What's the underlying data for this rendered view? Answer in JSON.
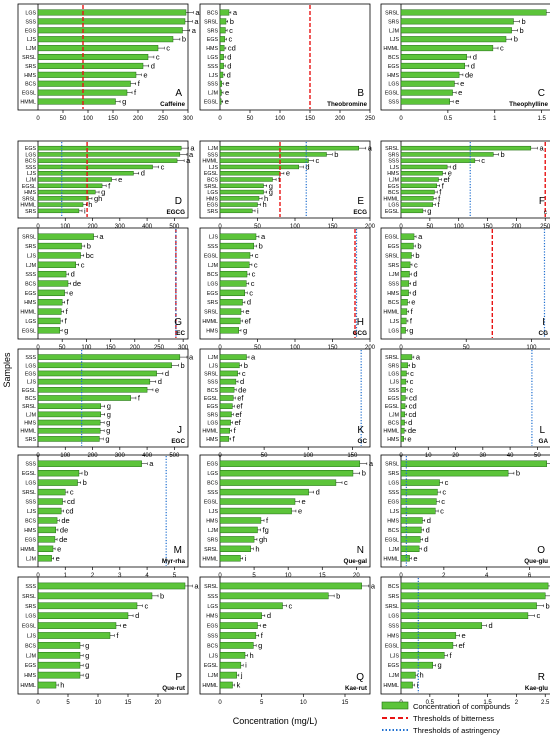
{
  "figure": {
    "ylabel": "Samples",
    "xlabel": "Concentration (mg/L)",
    "legend": [
      {
        "label": "Concentration of compounds",
        "kind": "bar",
        "color": "#5cc43a"
      },
      {
        "label": "Thresholds of bitterness",
        "kind": "dash",
        "color": "#e81414"
      },
      {
        "label": "Thresholds of astringency",
        "kind": "dot",
        "color": "#1e6fd0"
      }
    ]
  },
  "chart_data": [
    {
      "type": "bar",
      "panel": "A",
      "compound": "Caffeine",
      "xlim": [
        0,
        300
      ],
      "ticks": [
        50,
        100,
        150,
        200,
        250,
        300
      ],
      "bitterness": 90,
      "categories": [
        "LGS",
        "SSS",
        "EGS",
        "LJS",
        "LJM",
        "SRSL",
        "SRS",
        "HMS",
        "BCS",
        "EGSL",
        "HMML"
      ],
      "values": [
        296,
        294,
        289,
        270,
        240,
        220,
        210,
        196,
        185,
        178,
        155
      ],
      "labels": [
        "a",
        "a",
        "a",
        "b",
        "c",
        "c",
        "d",
        "e",
        "f",
        "f",
        "g"
      ]
    },
    {
      "type": "bar",
      "panel": "B",
      "compound": "Theobromine",
      "xlim": [
        0,
        250
      ],
      "ticks": [
        50,
        100,
        150,
        200,
        250
      ],
      "bitterness": 150,
      "categories": [
        "BCS",
        "SRSL",
        "SRS",
        "EGS",
        "HMS",
        "LGS",
        "SSS",
        "LJS",
        "SSS",
        "LJM",
        "EGSL"
      ],
      "values": [
        15,
        10,
        9,
        8,
        7,
        6,
        6,
        5,
        3,
        2.5,
        2
      ],
      "labels": [
        "a",
        "b",
        "c",
        "c",
        "cd",
        "d",
        "d",
        "d",
        "e",
        "e",
        "e"
      ]
    },
    {
      "type": "bar",
      "panel": "C",
      "compound": "Theophylline",
      "xlim": [
        0,
        1.6
      ],
      "ticks": [
        0.5,
        1,
        1.5
      ],
      "categories": [
        "SRSL",
        "SRS",
        "LJM",
        "LJS",
        "HMML",
        "BCS",
        "EGS",
        "HMS",
        "LGS",
        "EGSL",
        "SSS"
      ],
      "values": [
        1.55,
        1.2,
        1.18,
        1.12,
        0.98,
        0.7,
        0.68,
        0.62,
        0.57,
        0.55,
        0.52
      ],
      "labels": [
        "a",
        "b",
        "b",
        "b",
        "c",
        "d",
        "d",
        "de",
        "e",
        "e",
        "e"
      ]
    },
    {
      "type": "bar",
      "panel": "D",
      "compound": "EGCG",
      "xlim": [
        0,
        550
      ],
      "ticks": [
        100,
        200,
        300,
        400,
        500
      ],
      "bitterness": 180,
      "astringency": 87,
      "categories": [
        "EGS",
        "LGS",
        "BCS",
        "SSS",
        "LJS",
        "LJM",
        "EGSL",
        "HMS",
        "SRSL",
        "HMML",
        "SRS"
      ],
      "values": [
        525,
        520,
        510,
        420,
        350,
        270,
        235,
        210,
        185,
        165,
        150
      ],
      "labels": [
        "a",
        "a",
        "a",
        "c",
        "d",
        "e",
        "f",
        "g",
        "gh",
        "h",
        "i"
      ]
    },
    {
      "type": "bar",
      "panel": "E",
      "compound": "ECG",
      "xlim": [
        0,
        200
      ],
      "ticks": [
        50,
        100,
        150,
        200
      ],
      "bitterness": 80,
      "astringency": 115,
      "categories": [
        "LJM",
        "SSS",
        "HMML",
        "LJS",
        "EGSL",
        "BCS",
        "SRSL",
        "LGS",
        "HMS",
        "EGS",
        "SRS"
      ],
      "values": [
        185,
        142,
        118,
        105,
        80,
        70,
        58,
        58,
        52,
        50,
        43
      ],
      "labels": [
        "a",
        "b",
        "c",
        "d",
        "e",
        "f",
        "g",
        "g",
        "h",
        "h",
        "i"
      ]
    },
    {
      "type": "bar",
      "panel": "F",
      "compound": "",
      "xlim": [
        0,
        260
      ],
      "ticks": [
        50,
        100,
        150,
        200,
        250
      ],
      "bitterness": 250,
      "astringency": 120,
      "categories": [
        "SRSL",
        "SRS",
        "SSS",
        "LJS",
        "HMS",
        "LJM",
        "EGS",
        "BCS",
        "HMML",
        "LGS",
        "EGSL"
      ],
      "values": [
        225,
        160,
        128,
        80,
        72,
        65,
        62,
        58,
        56,
        55,
        38
      ],
      "labels": [
        "a",
        "b",
        "c",
        "d",
        "e",
        "ef",
        "f",
        "f",
        "f",
        "f",
        "g"
      ],
      "note": "c"
    },
    {
      "type": "bar",
      "panel": "G",
      "compound": "EC",
      "xlim": [
        0,
        310
      ],
      "ticks": [
        50,
        100,
        150,
        200,
        250,
        300
      ],
      "bitterness": 285,
      "astringency": 285,
      "categories": [
        "SRSL",
        "SRS",
        "LJS",
        "LJM",
        "SSS",
        "BCS",
        "EGS",
        "HMS",
        "HMML",
        "LGS",
        "EGSL"
      ],
      "values": [
        115,
        90,
        88,
        78,
        58,
        62,
        55,
        50,
        48,
        46,
        45
      ],
      "labels": [
        "a",
        "b",
        "bc",
        "c",
        "d",
        "de",
        "e",
        "f",
        "f",
        "f",
        "g"
      ]
    },
    {
      "type": "bar",
      "panel": "H",
      "compound": "GCG",
      "xlim": [
        0,
        200
      ],
      "ticks": [
        50,
        100,
        150,
        200
      ],
      "bitterness": 180,
      "astringency": 182,
      "categories": [
        "LJS",
        "SSS",
        "EGSL",
        "LJM",
        "BCS",
        "LGS",
        "EGS",
        "SRS",
        "SRSL",
        "HMML",
        "HMS"
      ],
      "values": [
        48,
        45,
        40,
        39,
        36,
        35,
        33,
        30,
        28,
        27,
        25
      ],
      "labels": [
        "a",
        "b",
        "c",
        "c",
        "c",
        "c",
        "c",
        "d",
        "e",
        "ef",
        "g"
      ]
    },
    {
      "type": "bar",
      "panel": "I",
      "compound": "CG",
      "xlim": [
        0,
        115
      ],
      "ticks": [
        50,
        100
      ],
      "bitterness": 70,
      "astringency": 110,
      "categories": [
        "EGSL",
        "EGS",
        "SRSL",
        "SRS",
        "LJM",
        "SSS",
        "HMS",
        "BCS",
        "HMML",
        "LJS",
        "LGS"
      ],
      "values": [
        10,
        9.5,
        8,
        7,
        6.5,
        6,
        5.8,
        5,
        4.5,
        4,
        3.5
      ],
      "labels": [
        "a",
        "b",
        "b",
        "c",
        "d",
        "d",
        "d",
        "e",
        "f",
        "f",
        "g"
      ]
    },
    {
      "type": "bar",
      "panel": "J",
      "compound": "EGC",
      "xlim": [
        0,
        550
      ],
      "ticks": [
        100,
        200,
        300,
        400,
        500
      ],
      "astringency": 160,
      "categories": [
        "SSS",
        "LGS",
        "EGS",
        "LJS",
        "EGSL",
        "BCS",
        "SRSL",
        "LJM",
        "HMS",
        "HMML",
        "SRS"
      ],
      "values": [
        520,
        490,
        435,
        410,
        400,
        340,
        230,
        230,
        228,
        228,
        225
      ],
      "labels": [
        "a",
        "b",
        "d",
        "d",
        "e",
        "f",
        "g",
        "g",
        "g",
        "g",
        "g"
      ]
    },
    {
      "type": "bar",
      "panel": "K",
      "compound": "GC",
      "xlim": [
        0,
        170
      ],
      "ticks": [
        50,
        100,
        150
      ],
      "astringency": 160,
      "categories": [
        "LJM",
        "LJS",
        "SRSL",
        "SSS",
        "BCS",
        "EGSL",
        "EGS",
        "SRS",
        "LGS",
        "HMML",
        "HMS"
      ],
      "values": [
        30,
        22,
        20,
        18,
        16,
        15,
        14,
        13,
        12,
        11,
        10
      ],
      "labels": [
        "a",
        "b",
        "c",
        "d",
        "de",
        "ef",
        "ef",
        "ef",
        "ef",
        "f",
        "f"
      ]
    },
    {
      "type": "bar",
      "panel": "L",
      "compound": "GA",
      "xlim": [
        0,
        55
      ],
      "ticks": [
        10,
        20,
        30,
        40,
        50
      ],
      "astringency": 48,
      "categories": [
        "SRSL",
        "SRS",
        "LGS",
        "LJS",
        "SSS",
        "EGS",
        "EGSL",
        "LJM",
        "BCS",
        "HMML",
        "HMS"
      ],
      "values": [
        4,
        2.5,
        2,
        1.8,
        1.7,
        1.6,
        1.5,
        1.4,
        1.3,
        1.2,
        1
      ],
      "labels": [
        "a",
        "b",
        "c",
        "c",
        "c",
        "cd",
        "cd",
        "cd",
        "d",
        "de",
        "e"
      ]
    },
    {
      "type": "bar",
      "panel": "M",
      "compound": "Myr-rha",
      "xlim": [
        0,
        5.5
      ],
      "ticks": [
        1,
        2,
        3,
        4,
        5
      ],
      "astringency": 4.7,
      "categories": [
        "SSS",
        "EGSL",
        "LGS",
        "SRSL",
        "SSS",
        "LJS",
        "BCS",
        "HMS",
        "EGS",
        "HMML",
        "LJM"
      ],
      "values": [
        3.8,
        1.5,
        1.45,
        1.0,
        0.9,
        0.85,
        0.7,
        0.65,
        0.62,
        0.55,
        0.5
      ],
      "labels": [
        "a",
        "b",
        "b",
        "c",
        "cd",
        "cd",
        "de",
        "de",
        "de",
        "e",
        "e"
      ]
    },
    {
      "type": "bar",
      "panel": "N",
      "compound": "Que-gal",
      "xlim": [
        0,
        22
      ],
      "ticks": [
        5,
        10,
        15,
        20
      ],
      "categories": [
        "EGS",
        "LGS",
        "BCS",
        "SSS",
        "EGSL",
        "LJS",
        "HMS",
        "LJM",
        "SRS",
        "SRSL",
        "HMML"
      ],
      "values": [
        20.5,
        19.5,
        17,
        13,
        11,
        10.5,
        6,
        5.5,
        5,
        4.5,
        3
      ],
      "labels": [
        "a",
        "b",
        "c",
        "d",
        "e",
        "e",
        "f",
        "fg",
        "gh",
        "h",
        "i"
      ]
    },
    {
      "type": "bar",
      "panel": "O",
      "compound": "Que-glu",
      "xlim": [
        0,
        7
      ],
      "ticks": [
        2,
        4,
        6
      ],
      "astringency": 0.25,
      "categories": [
        "SRSL",
        "SRS",
        "LGS",
        "SSS",
        "EGS",
        "LJS",
        "HMS",
        "BCS",
        "EGSL",
        "LJM",
        "HMML"
      ],
      "values": [
        6.8,
        5.0,
        1.8,
        1.7,
        1.65,
        1.6,
        1.0,
        0.95,
        0.9,
        0.85,
        0.4
      ],
      "labels": [
        "a",
        "b",
        "c",
        "c",
        "c",
        "c",
        "d",
        "d",
        "d",
        "d",
        "e"
      ]
    },
    {
      "type": "bar",
      "panel": "P",
      "compound": "Que-rut",
      "xlim": [
        0,
        25
      ],
      "ticks": [
        5,
        10,
        15,
        20
      ],
      "categories": [
        "SSS",
        "SRSL",
        "SRS",
        "LGS",
        "EGSL",
        "LJS",
        "BCS",
        "LJM",
        "EGS",
        "HMS",
        "HMML"
      ],
      "values": [
        24.5,
        19,
        16.5,
        15,
        13,
        12,
        7,
        7,
        7,
        7,
        3
      ],
      "labels": [
        "a",
        "b",
        "c",
        "d",
        "e",
        "f",
        "g",
        "g",
        "g",
        "g",
        "h"
      ]
    },
    {
      "type": "bar",
      "panel": "Q",
      "compound": "Kae-rut",
      "xlim": [
        0,
        18
      ],
      "ticks": [
        5,
        10,
        15
      ],
      "categories": [
        "SRSL",
        "SSS",
        "LGS",
        "HMS",
        "EGS",
        "SSS",
        "BCS",
        "LJS",
        "EGSL",
        "LJM",
        "HMML"
      ],
      "values": [
        17,
        13,
        7.5,
        5,
        4.5,
        4.3,
        4,
        3,
        2.5,
        2,
        1.5
      ],
      "labels": [
        "a",
        "b",
        "c",
        "d",
        "e",
        "f",
        "g",
        "h",
        "i",
        "j",
        "k"
      ]
    },
    {
      "type": "bar",
      "panel": "R",
      "compound": "Kae-glu",
      "xlim": [
        0,
        2.6
      ],
      "ticks": [
        0.5,
        1,
        1.5,
        2,
        2.5
      ],
      "astringency": 0.3,
      "categories": [
        "BCS",
        "SRS",
        "SRSL",
        "LGS",
        "SSS",
        "HMS",
        "EGSL",
        "LJS",
        "EGS",
        "LJM",
        "HMML"
      ],
      "values": [
        2.55,
        2.5,
        2.35,
        2.2,
        1.4,
        0.95,
        0.9,
        0.75,
        0.55,
        0.25,
        0.2
      ],
      "labels": [
        "a",
        "a",
        "b",
        "c",
        "d",
        "e",
        "ef",
        "f",
        "g",
        "h",
        "i"
      ]
    }
  ]
}
